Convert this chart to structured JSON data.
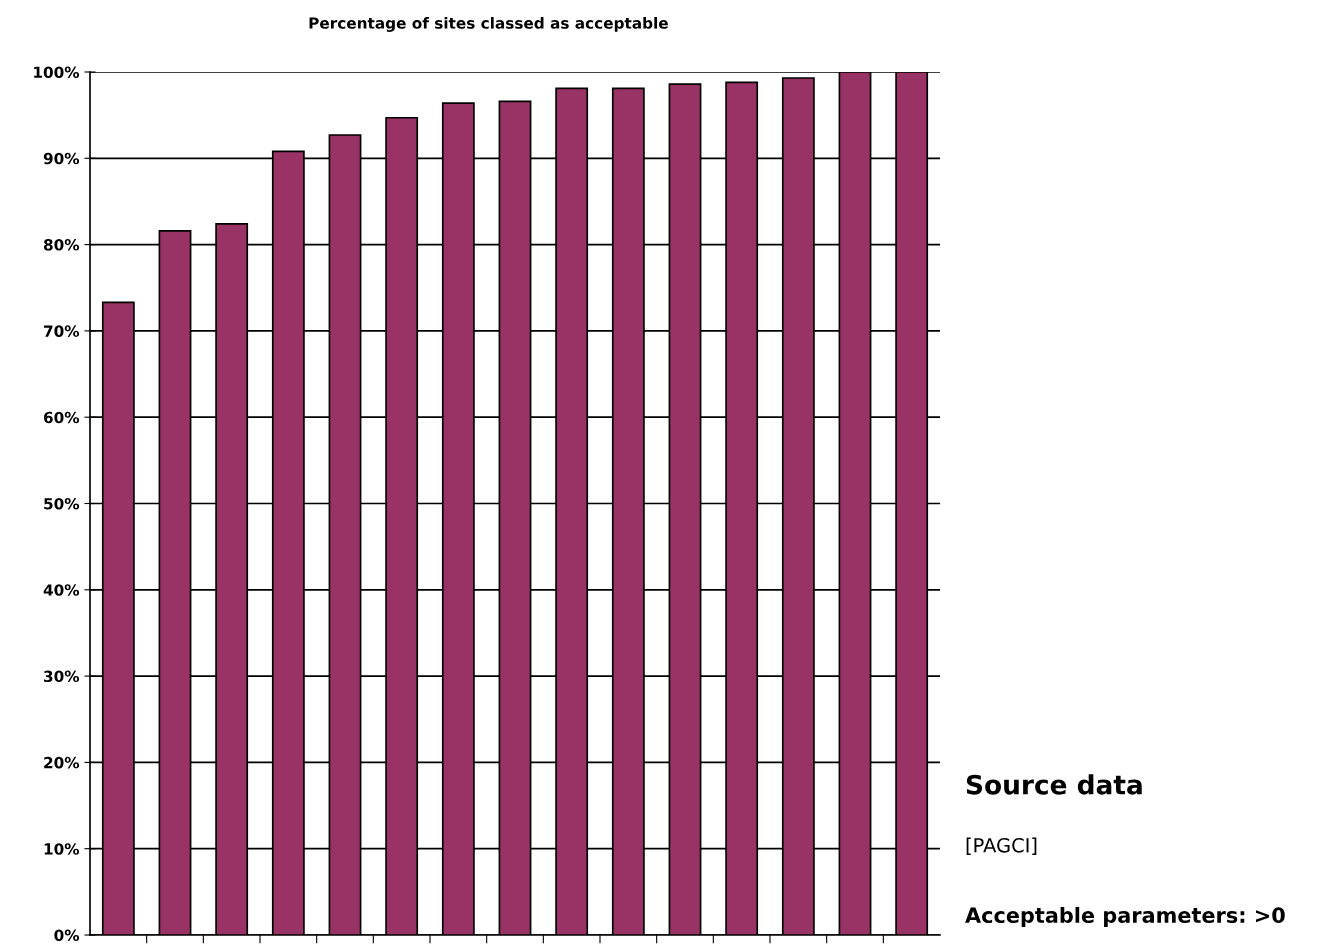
{
  "chart_data": {
    "type": "bar",
    "title": "Percentage of sites classed as acceptable",
    "categories": [
      null,
      null,
      null,
      null,
      null,
      null,
      null,
      null,
      null,
      null,
      null,
      null,
      null,
      null,
      null
    ],
    "values": [
      73.3,
      81.6,
      82.4,
      90.8,
      92.7,
      94.7,
      96.4,
      96.6,
      98.1,
      98.1,
      98.6,
      98.8,
      99.3,
      100,
      100
    ],
    "color": "#993366",
    "ylim": [
      0,
      100
    ],
    "yticks": [
      {
        "value": 0,
        "label": "0%"
      },
      {
        "value": 10,
        "label": "10%"
      },
      {
        "value": 20,
        "label": "20%"
      },
      {
        "value": 30,
        "label": "30%"
      },
      {
        "value": 40,
        "label": "40%"
      },
      {
        "value": 50,
        "label": "50%"
      },
      {
        "value": 60,
        "label": "60%"
      },
      {
        "value": 70,
        "label": "70%"
      },
      {
        "value": 80,
        "label": "80%"
      },
      {
        "value": 90,
        "label": "90%"
      },
      {
        "value": 100,
        "label": "100%"
      }
    ],
    "grid": "y",
    "annotations": [
      "Source data",
      "[PAGCI]",
      "Acceptable parameters: >0"
    ]
  }
}
